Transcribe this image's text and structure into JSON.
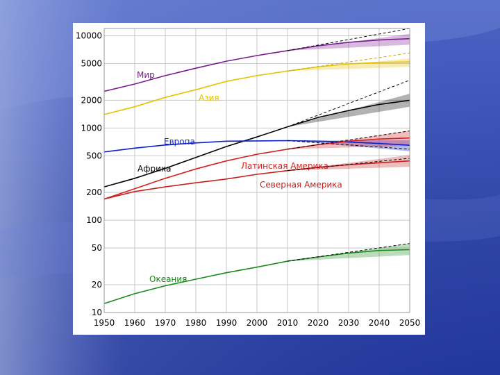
{
  "colors": {
    "World": "#7b1a8f",
    "Asia": "#e6c200",
    "Africa": "#000000",
    "Europe": "#0a1fd0",
    "LatAm": "#d42020",
    "NorthAm": "#c42020",
    "Oceania": "#1a8a1a"
  },
  "chart_data": {
    "type": "line",
    "y_scale": "log",
    "xlim": [
      1950,
      2050
    ],
    "ylim": [
      10,
      12000
    ],
    "x_ticks": [
      1950,
      1960,
      1970,
      1980,
      1990,
      2000,
      2010,
      2020,
      2030,
      2040,
      2050
    ],
    "y_ticks": [
      10,
      20,
      50,
      100,
      200,
      500,
      1000,
      2000,
      5000,
      10000
    ],
    "grid": true,
    "series": [
      {
        "key": "World",
        "name": "Мир",
        "x": [
          1950,
          1960,
          1970,
          1980,
          1990,
          2000,
          2010,
          2020,
          2030,
          2040,
          2050
        ],
        "values": [
          2500,
          3000,
          3700,
          4450,
          5300,
          6100,
          6900,
          7800,
          8500,
          9000,
          9300
        ],
        "dashed_end": 12000,
        "band": [
          8000,
          10500
        ]
      },
      {
        "key": "Asia",
        "name": "Азия",
        "x": [
          1950,
          1960,
          1970,
          1980,
          1990,
          2000,
          2010,
          2020,
          2030,
          2040,
          2050
        ],
        "values": [
          1400,
          1700,
          2150,
          2600,
          3200,
          3700,
          4150,
          4600,
          4950,
          5150,
          5200
        ],
        "dashed_end": 6500,
        "band": [
          4600,
          5700
        ]
      },
      {
        "key": "Africa",
        "name": "Африка",
        "x": [
          1950,
          1960,
          1970,
          1980,
          1990,
          2000,
          2010,
          2020,
          2030,
          2040,
          2050
        ],
        "values": [
          230,
          285,
          365,
          480,
          630,
          800,
          1030,
          1300,
          1550,
          1800,
          2000
        ],
        "dashed_end": 3300,
        "band": [
          1700,
          2350
        ]
      },
      {
        "key": "Europe",
        "name": "Европа",
        "x": [
          1950,
          1960,
          1970,
          1980,
          1990,
          2000,
          2010,
          2020,
          2030,
          2040,
          2050
        ],
        "values": [
          550,
          605,
          655,
          690,
          720,
          725,
          730,
          720,
          705,
          680,
          650
        ],
        "dashed_end": 590,
        "band": [
          560,
          740
        ]
      },
      {
        "key": "LatAm",
        "name": "Латинская Америка",
        "x": [
          1950,
          1960,
          1970,
          1980,
          1990,
          2000,
          2010,
          2020,
          2030,
          2040,
          2050
        ],
        "values": [
          170,
          220,
          285,
          360,
          440,
          520,
          590,
          660,
          720,
          760,
          780
        ],
        "dashed_end": 930,
        "band": [
          640,
          940
        ]
      },
      {
        "key": "NorthAm",
        "name": "Северная Америка",
        "x": [
          1950,
          1960,
          1970,
          1980,
          1990,
          2000,
          2010,
          2020,
          2030,
          2040,
          2050
        ],
        "values": [
          170,
          205,
          230,
          255,
          280,
          315,
          345,
          375,
          400,
          420,
          440
        ],
        "dashed_end": 470,
        "band": [
          380,
          510
        ]
      },
      {
        "key": "Oceania",
        "name": "Океания",
        "x": [
          1950,
          1960,
          1970,
          1980,
          1990,
          2000,
          2010,
          2020,
          2030,
          2040,
          2050
        ],
        "values": [
          12.5,
          16,
          19.5,
          23,
          27,
          31,
          36,
          40,
          44,
          47,
          48
        ],
        "dashed_end": 56,
        "band": [
          42,
          56
        ]
      }
    ]
  }
}
